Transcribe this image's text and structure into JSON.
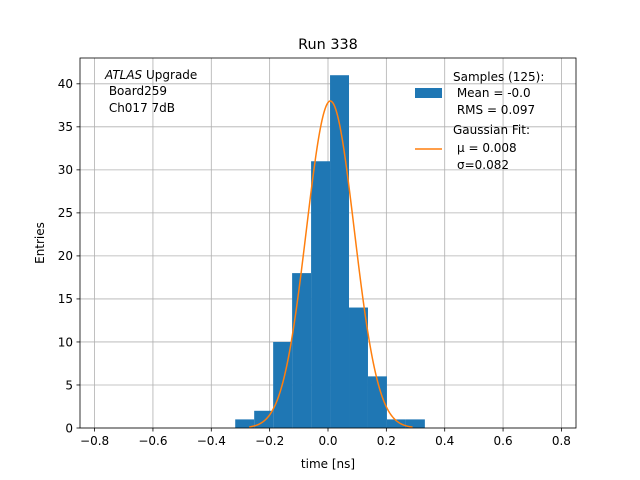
{
  "chart_data": {
    "type": "histogram",
    "title": "Run 338",
    "xlabel": "time [ns]",
    "ylabel": "Entries",
    "xlim": [
      -0.85,
      0.85
    ],
    "ylim": [
      0,
      43
    ],
    "xticks": [
      -0.8,
      -0.6,
      -0.4,
      -0.2,
      0.0,
      0.2,
      0.4,
      0.6,
      0.8
    ],
    "xtick_labels": [
      "−0.8",
      "−0.6",
      "−0.4",
      "−0.2",
      "0.0",
      "0.2",
      "0.4",
      "0.6",
      "0.8"
    ],
    "yticks": [
      0,
      5,
      10,
      15,
      20,
      25,
      30,
      35,
      40
    ],
    "ytick_labels": [
      "0",
      "5",
      "10",
      "15",
      "20",
      "25",
      "30",
      "35",
      "40"
    ],
    "grid": true,
    "legend_placement": "top-right",
    "bins": [
      {
        "x0": -0.318,
        "x1": -0.253,
        "count": 1
      },
      {
        "x0": -0.253,
        "x1": -0.188,
        "count": 2
      },
      {
        "x0": -0.188,
        "x1": -0.123,
        "count": 10
      },
      {
        "x0": -0.123,
        "x1": -0.058,
        "count": 18
      },
      {
        "x0": -0.058,
        "x1": 0.007,
        "count": 31
      },
      {
        "x0": 0.007,
        "x1": 0.072,
        "count": 41
      },
      {
        "x0": 0.072,
        "x1": 0.137,
        "count": 14
      },
      {
        "x0": 0.137,
        "x1": 0.202,
        "count": 6
      },
      {
        "x0": 0.202,
        "x1": 0.267,
        "count": 1
      },
      {
        "x0": 0.267,
        "x1": 0.332,
        "count": 1
      }
    ],
    "fit": {
      "mu": 0.008,
      "sigma": 0.082,
      "amplitude": 38,
      "x_min": -0.27,
      "x_max": 0.29
    },
    "hist_color": "#1f77b4",
    "fit_color": "#ff7f0e",
    "annotation": {
      "italic": "ATLAS",
      "rest": " Upgrade",
      "line2": " Board259",
      "line3": " Ch017 7dB"
    },
    "legend": {
      "samples_lines": [
        "Samples (125):",
        " Mean = -0.0",
        " RMS = 0.097"
      ],
      "fit_line1": "Gaussian Fit:",
      "fit_mu_label": "μ = 0.008",
      "fit_sigma_label": "σ=0.082"
    }
  }
}
